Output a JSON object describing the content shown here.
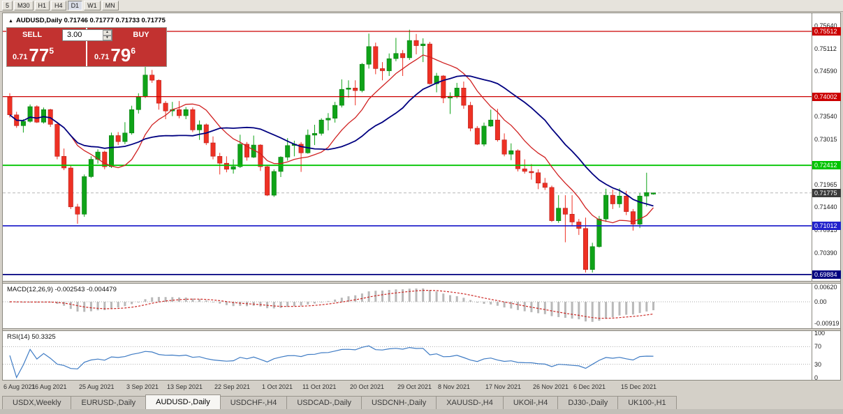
{
  "toolbar": {
    "timeframes": [
      {
        "label": "5",
        "active": false
      },
      {
        "label": "M30",
        "active": false
      },
      {
        "label": "H1",
        "active": false
      },
      {
        "label": "H4",
        "active": false
      },
      {
        "label": "D1",
        "active": true
      },
      {
        "label": "W1",
        "active": false
      },
      {
        "label": "MN",
        "active": false
      }
    ]
  },
  "chart_header": {
    "collapse_icon": "▲",
    "title": "AUDUSD,Daily",
    "quote": "0.71746 0.71777 0.71733 0.71775"
  },
  "trade_panel": {
    "sell_label": "SELL",
    "buy_label": "BUY",
    "volume": "3.00",
    "spin_up": "▲",
    "spin_down": "▼",
    "sell_price_small": "0.71",
    "sell_price_big": "77",
    "sell_price_sup": "5",
    "buy_price_small": "0.71",
    "buy_price_big": "79",
    "buy_price_sup": "6",
    "button_color": "#c23230"
  },
  "indicators": {
    "macd_label": "MACD(12,26,9) -0.002543 -0.004479",
    "rsi_label": "RSI(14) 50.3325"
  },
  "chart_data": {
    "type": "candlestick",
    "symbol": "AUDUSD",
    "timeframe": "Daily",
    "ylim": [
      0.69737,
      0.75931
    ],
    "y_ticks": [
      "0.75640",
      "0.75112",
      "0.74590",
      "0.73540",
      "0.73015",
      "0.71965",
      "0.71440",
      "0.70915",
      "0.70390"
    ],
    "hlines": [
      {
        "price": 0.75512,
        "color": "#cc0000",
        "badge": "0.75512",
        "width": 1.2
      },
      {
        "price": 0.74002,
        "color": "#cc0000",
        "badge": "0.74002",
        "width": 1.2
      },
      {
        "price": 0.72412,
        "color": "#00c400",
        "badge": "0.72412",
        "width": 1.8
      },
      {
        "price": 0.71012,
        "color": "#2222cc",
        "badge": "0.71012",
        "width": 1.8
      },
      {
        "price": 0.69884,
        "color": "#000080",
        "badge": "0.69884",
        "width": 1.8
      }
    ],
    "current_price": {
      "value": 0.71775,
      "badge": "0.71775",
      "badge_color": "#3c3c3c"
    },
    "colors": {
      "bull": "#0fa318",
      "bear": "#ee3124",
      "bull_stroke": "#0a7d12",
      "bear_stroke": "#b61f1c"
    },
    "ma": [
      {
        "period": 10,
        "color": "#d02020",
        "width": 1.3
      },
      {
        "period": 21,
        "color": "#000080",
        "width": 1.8
      }
    ],
    "macd": {
      "params": [
        12,
        26,
        9
      ],
      "y_ticks": [
        "0.00620",
        "0.00",
        "-0.00919"
      ],
      "vlim": [
        -0.0111,
        0.0076
      ],
      "hist_color": "#b9b9b9",
      "signal_color": "#cc2824"
    },
    "rsi": {
      "period": 14,
      "y_ticks": [
        "100",
        "70",
        "30",
        "0"
      ],
      "vlim": [
        -5.4,
        105.4
      ],
      "levels": [
        70,
        30
      ],
      "line_color": "#3e7bc4"
    },
    "x_labels": [
      "6 Aug 2021",
      "16 Aug 2021",
      "25 Aug 2021",
      "3 Sep 2021",
      "13 Sep 2021",
      "22 Sep 2021",
      "1 Oct 2021",
      "11 Oct 2021",
      "20 Oct 2021",
      "29 Oct 2021",
      "8 Nov 2021",
      "17 Nov 2021",
      "26 Nov 2021",
      "6 Dec 2021",
      "15 Dec 2021"
    ],
    "x_label_indices": [
      0,
      6,
      13,
      20,
      26,
      33,
      40,
      46,
      53,
      60,
      66,
      73,
      80,
      86,
      93
    ],
    "ohlc": [
      [
        0.74,
        0.7408,
        0.7352,
        0.7358
      ],
      [
        0.7358,
        0.7365,
        0.7328,
        0.7333
      ],
      [
        0.7333,
        0.7348,
        0.7317,
        0.7343
      ],
      [
        0.7343,
        0.7382,
        0.734,
        0.7377
      ],
      [
        0.7377,
        0.738,
        0.7339,
        0.7341
      ],
      [
        0.7341,
        0.7375,
        0.7338,
        0.737
      ],
      [
        0.737,
        0.7372,
        0.733,
        0.7336
      ],
      [
        0.7336,
        0.734,
        0.7255,
        0.7262
      ],
      [
        0.7262,
        0.728,
        0.723,
        0.7235
      ],
      [
        0.7235,
        0.724,
        0.714,
        0.7145
      ],
      [
        0.7145,
        0.7152,
        0.7106,
        0.7128
      ],
      [
        0.7128,
        0.722,
        0.7122,
        0.7215
      ],
      [
        0.7215,
        0.7262,
        0.7212,
        0.7255
      ],
      [
        0.7255,
        0.7278,
        0.7245,
        0.7272
      ],
      [
        0.7272,
        0.7275,
        0.7232,
        0.7238
      ],
      [
        0.7238,
        0.7317,
        0.7235,
        0.731
      ],
      [
        0.731,
        0.7318,
        0.7288,
        0.7296
      ],
      [
        0.7296,
        0.7341,
        0.729,
        0.7316
      ],
      [
        0.7316,
        0.7379,
        0.7312,
        0.737
      ],
      [
        0.737,
        0.7408,
        0.7361,
        0.74
      ],
      [
        0.74,
        0.7477,
        0.7397,
        0.745
      ],
      [
        0.745,
        0.7462,
        0.7432,
        0.7438
      ],
      [
        0.7438,
        0.744,
        0.737,
        0.7385
      ],
      [
        0.7385,
        0.739,
        0.7348,
        0.7367
      ],
      [
        0.7367,
        0.7388,
        0.7355,
        0.737
      ],
      [
        0.737,
        0.739,
        0.735,
        0.7356
      ],
      [
        0.7356,
        0.7376,
        0.7348,
        0.737
      ],
      [
        0.737,
        0.7375,
        0.7318,
        0.7323
      ],
      [
        0.7323,
        0.7345,
        0.73,
        0.7335
      ],
      [
        0.7335,
        0.7338,
        0.7288,
        0.7293
      ],
      [
        0.7293,
        0.7308,
        0.7255,
        0.7262
      ],
      [
        0.7262,
        0.727,
        0.722,
        0.7246
      ],
      [
        0.7246,
        0.7262,
        0.7225,
        0.7232
      ],
      [
        0.7232,
        0.7255,
        0.7222,
        0.7238
      ],
      [
        0.7238,
        0.7312,
        0.7235,
        0.729
      ],
      [
        0.729,
        0.7295,
        0.7252,
        0.726
      ],
      [
        0.726,
        0.731,
        0.7258,
        0.7288
      ],
      [
        0.7288,
        0.729,
        0.7228,
        0.7238
      ],
      [
        0.7238,
        0.7242,
        0.717,
        0.7172
      ],
      [
        0.7172,
        0.7232,
        0.7168,
        0.7227
      ],
      [
        0.7227,
        0.7262,
        0.7214,
        0.726
      ],
      [
        0.726,
        0.7304,
        0.7252,
        0.7287
      ],
      [
        0.7287,
        0.7298,
        0.7262,
        0.729
      ],
      [
        0.729,
        0.7295,
        0.7226,
        0.727
      ],
      [
        0.727,
        0.7324,
        0.7268,
        0.7311
      ],
      [
        0.7311,
        0.7335,
        0.7288,
        0.7315
      ],
      [
        0.7315,
        0.735,
        0.731,
        0.7346
      ],
      [
        0.7346,
        0.7362,
        0.7322,
        0.735
      ],
      [
        0.735,
        0.7388,
        0.734,
        0.738
      ],
      [
        0.738,
        0.744,
        0.7375,
        0.7417
      ],
      [
        0.7417,
        0.7438,
        0.7398,
        0.742
      ],
      [
        0.742,
        0.7438,
        0.738,
        0.7414
      ],
      [
        0.7414,
        0.7478,
        0.741,
        0.7475
      ],
      [
        0.7475,
        0.7546,
        0.7465,
        0.7516
      ],
      [
        0.7516,
        0.7525,
        0.7452,
        0.7465
      ],
      [
        0.7465,
        0.748,
        0.7438,
        0.746
      ],
      [
        0.746,
        0.75,
        0.7448,
        0.7488
      ],
      [
        0.7488,
        0.7536,
        0.7482,
        0.75
      ],
      [
        0.75,
        0.7508,
        0.7448,
        0.749
      ],
      [
        0.749,
        0.7555,
        0.7485,
        0.753
      ],
      [
        0.753,
        0.7545,
        0.7498,
        0.7518
      ],
      [
        0.7518,
        0.7535,
        0.748,
        0.7522
      ],
      [
        0.7522,
        0.7527,
        0.7428,
        0.743
      ],
      [
        0.743,
        0.7455,
        0.741,
        0.7448
      ],
      [
        0.7448,
        0.745,
        0.7385,
        0.7397
      ],
      [
        0.7397,
        0.741,
        0.736,
        0.7401
      ],
      [
        0.7401,
        0.7432,
        0.7396,
        0.742
      ],
      [
        0.742,
        0.7435,
        0.7372,
        0.738
      ],
      [
        0.738,
        0.7388,
        0.732,
        0.7327
      ],
      [
        0.7327,
        0.7332,
        0.7288,
        0.729
      ],
      [
        0.729,
        0.734,
        0.7285,
        0.7332
      ],
      [
        0.7332,
        0.737,
        0.733,
        0.7346
      ],
      [
        0.7346,
        0.7372,
        0.7296,
        0.73
      ],
      [
        0.73,
        0.7315,
        0.7262,
        0.7267
      ],
      [
        0.7267,
        0.7292,
        0.7253,
        0.7275
      ],
      [
        0.7275,
        0.7278,
        0.7227,
        0.7233
      ],
      [
        0.7233,
        0.7255,
        0.7222,
        0.7227
      ],
      [
        0.7227,
        0.7244,
        0.7208,
        0.7224
      ],
      [
        0.7224,
        0.7232,
        0.7186,
        0.72
      ],
      [
        0.72,
        0.7212,
        0.7184,
        0.719
      ],
      [
        0.719,
        0.7194,
        0.711,
        0.7113
      ],
      [
        0.7113,
        0.7172,
        0.7108,
        0.7142
      ],
      [
        0.7142,
        0.7172,
        0.7063,
        0.7128
      ],
      [
        0.7128,
        0.7172,
        0.71,
        0.711
      ],
      [
        0.711,
        0.7117,
        0.708,
        0.7095
      ],
      [
        0.7095,
        0.712,
        0.6993,
        0.7
      ],
      [
        0.7,
        0.7062,
        0.6993,
        0.7053
      ],
      [
        0.7053,
        0.7124,
        0.7051,
        0.7117
      ],
      [
        0.7117,
        0.7187,
        0.711,
        0.7172
      ],
      [
        0.7172,
        0.7185,
        0.714,
        0.7152
      ],
      [
        0.7152,
        0.7188,
        0.7143,
        0.717
      ],
      [
        0.717,
        0.7182,
        0.7126,
        0.7134
      ],
      [
        0.7134,
        0.714,
        0.709,
        0.7105
      ],
      [
        0.7105,
        0.7177,
        0.7096,
        0.717
      ],
      [
        0.717,
        0.7224,
        0.7146,
        0.7178
      ],
      [
        0.71746,
        0.71777,
        0.71733,
        0.71775
      ]
    ]
  },
  "tabs": [
    {
      "label": "USDX,Weekly",
      "active": false
    },
    {
      "label": "EURUSD-,Daily",
      "active": false
    },
    {
      "label": "AUDUSD-,Daily",
      "active": true
    },
    {
      "label": "USDCHF-,H4",
      "active": false
    },
    {
      "label": "USDCAD-,Daily",
      "active": false
    },
    {
      "label": "USDCNH-,Daily",
      "active": false
    },
    {
      "label": "XAUUSD-,H4",
      "active": false
    },
    {
      "label": "UKOil-,H4",
      "active": false
    },
    {
      "label": "DJ30-,Daily",
      "active": false
    },
    {
      "label": "UK100-,H1",
      "active": false
    }
  ]
}
